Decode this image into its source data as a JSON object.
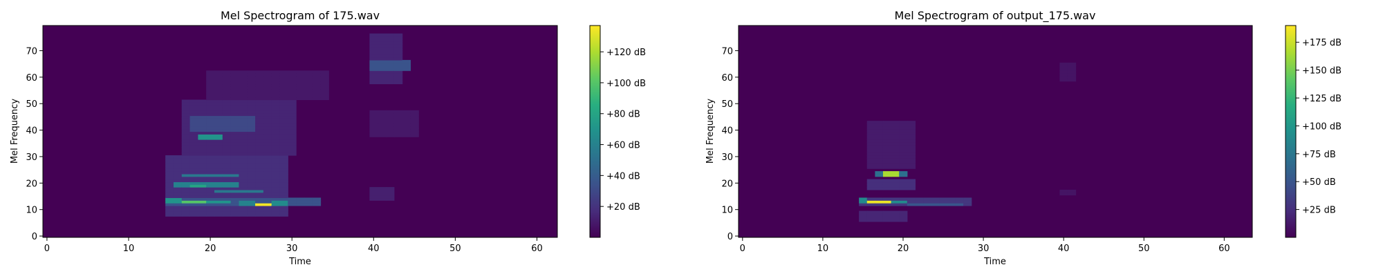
{
  "chart_data": [
    {
      "type": "heatmap",
      "title": "Mel Spectrogram of 175.wav",
      "xlabel": "Time",
      "ylabel": "Mel Frequency",
      "xlim": [
        -0.5,
        62.5
      ],
      "ylim": [
        -0.5,
        79.5
      ],
      "xticks": [
        0,
        10,
        20,
        30,
        40,
        50,
        60
      ],
      "yticks": [
        0,
        10,
        20,
        30,
        40,
        50,
        60,
        70
      ],
      "colormap": [
        "#440154",
        "#472d7b",
        "#3b528b",
        "#2c728e",
        "#21918c",
        "#28ae80",
        "#5ec962",
        "#addc30",
        "#fde725"
      ],
      "colorbar": {
        "range": [
          0,
          137
        ],
        "ticks": [
          20,
          40,
          60,
          80,
          100,
          120
        ],
        "tick_labels": [
          "+20 dB",
          "+40 dB",
          "+60 dB",
          "+80 dB",
          "+100 dB",
          "+120 dB"
        ]
      },
      "blobs": [
        {
          "t": [
            15,
            34
          ],
          "f": [
            12,
            15
          ],
          "v": 35
        },
        {
          "t": [
            17,
            20
          ],
          "f": [
            13,
            14
          ],
          "v": 100
        },
        {
          "t": [
            15,
            17
          ],
          "f": [
            13,
            15
          ],
          "v": 70
        },
        {
          "t": [
            20,
            23
          ],
          "f": [
            13,
            14
          ],
          "v": 70
        },
        {
          "t": [
            26,
            28
          ],
          "f": [
            12,
            13
          ],
          "v": 135
        },
        {
          "t": [
            24,
            26
          ],
          "f": [
            12,
            14
          ],
          "v": 60
        },
        {
          "t": [
            28,
            30
          ],
          "f": [
            12,
            14
          ],
          "v": 65
        },
        {
          "t": [
            16,
            24
          ],
          "f": [
            19,
            21
          ],
          "v": 60
        },
        {
          "t": [
            18,
            20
          ],
          "f": [
            19,
            20
          ],
          "v": 80
        },
        {
          "t": [
            21,
            27
          ],
          "f": [
            17,
            18
          ],
          "v": 55
        },
        {
          "t": [
            17,
            24
          ],
          "f": [
            23,
            24
          ],
          "v": 55
        },
        {
          "t": [
            19,
            22
          ],
          "f": [
            37,
            39
          ],
          "v": 70
        },
        {
          "t": [
            18,
            26
          ],
          "f": [
            40,
            46
          ],
          "v": 30
        },
        {
          "t": [
            15,
            30
          ],
          "f": [
            8,
            31
          ],
          "v": 18
        },
        {
          "t": [
            17,
            31
          ],
          "f": [
            31,
            52
          ],
          "v": 14
        },
        {
          "t": [
            20,
            35
          ],
          "f": [
            52,
            63
          ],
          "v": 9
        },
        {
          "t": [
            40,
            45
          ],
          "f": [
            63,
            67
          ],
          "v": 35
        },
        {
          "t": [
            40,
            44
          ],
          "f": [
            58,
            77
          ],
          "v": 14
        },
        {
          "t": [
            40,
            46
          ],
          "f": [
            38,
            48
          ],
          "v": 9
        },
        {
          "t": [
            40,
            43
          ],
          "f": [
            14,
            19
          ],
          "v": 12
        }
      ]
    },
    {
      "type": "heatmap",
      "title": "Mel Spectrogram of output_175.wav",
      "xlabel": "Time",
      "ylabel": "Mel Frequency",
      "xlim": [
        -0.5,
        63.5
      ],
      "ylim": [
        -0.5,
        79.5
      ],
      "xticks": [
        0,
        10,
        20,
        30,
        40,
        50,
        60
      ],
      "yticks": [
        0,
        10,
        20,
        30,
        40,
        50,
        60,
        70
      ],
      "colormap": [
        "#440154",
        "#472d7b",
        "#3b528b",
        "#2c728e",
        "#21918c",
        "#28ae80",
        "#5ec962",
        "#addc30",
        "#fde725"
      ],
      "colorbar": {
        "range": [
          0,
          190
        ],
        "ticks": [
          25,
          50,
          75,
          100,
          125,
          150,
          175
        ],
        "tick_labels": [
          "+25 dB",
          "+50 dB",
          "+75 dB",
          "+100 dB",
          "+125 dB",
          "+150 dB",
          "+175 dB"
        ]
      },
      "blobs": [
        {
          "t": [
            15,
            29
          ],
          "f": [
            12,
            15
          ],
          "v": 30
        },
        {
          "t": [
            16,
            19
          ],
          "f": [
            13,
            14
          ],
          "v": 185
        },
        {
          "t": [
            15,
            16
          ],
          "f": [
            13,
            15
          ],
          "v": 90
        },
        {
          "t": [
            19,
            21
          ],
          "f": [
            13,
            14
          ],
          "v": 90
        },
        {
          "t": [
            21,
            28
          ],
          "f": [
            12,
            13
          ],
          "v": 50
        },
        {
          "t": [
            18,
            20
          ],
          "f": [
            23,
            25
          ],
          "v": 165
        },
        {
          "t": [
            17,
            21
          ],
          "f": [
            23,
            25
          ],
          "v": 70
        },
        {
          "t": [
            16,
            22
          ],
          "f": [
            18,
            22
          ],
          "v": 25
        },
        {
          "t": [
            15,
            21
          ],
          "f": [
            6,
            10
          ],
          "v": 20
        },
        {
          "t": [
            16,
            22
          ],
          "f": [
            26,
            44
          ],
          "v": 14
        },
        {
          "t": [
            40,
            42
          ],
          "f": [
            59,
            66
          ],
          "v": 10
        },
        {
          "t": [
            40,
            42
          ],
          "f": [
            16,
            18
          ],
          "v": 10
        }
      ]
    }
  ]
}
